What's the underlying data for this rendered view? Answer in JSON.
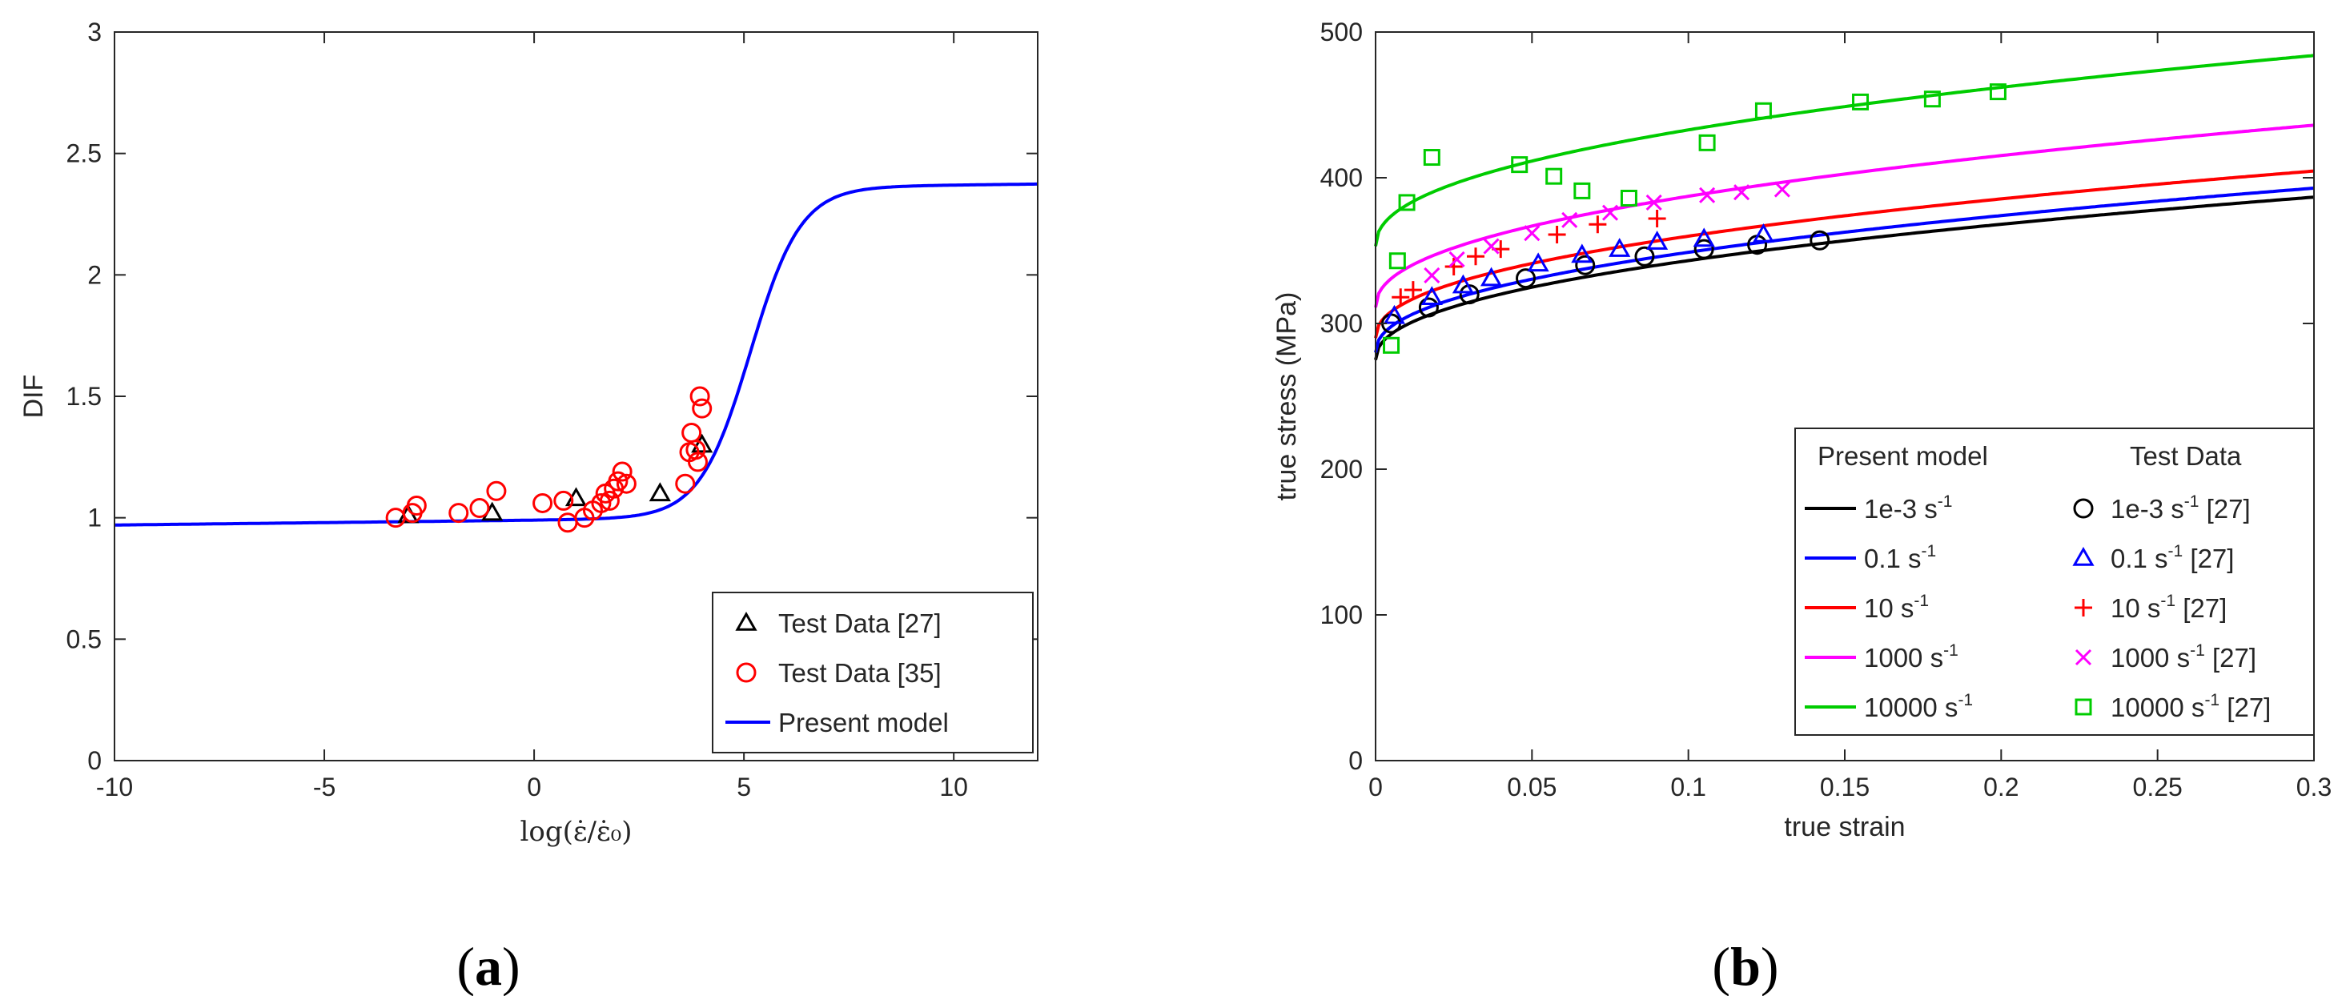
{
  "chart_data": [
    {
      "panel": "a",
      "type": "line",
      "caption": "a",
      "xlabel": "log(ε̇/ε̇₀)",
      "ylabel": "DIF",
      "xlim": [
        -10,
        12
      ],
      "ylim": [
        0,
        3
      ],
      "xticks": [
        -10,
        -5,
        0,
        5,
        10
      ],
      "yticks": [
        0,
        0.5,
        1,
        1.5,
        2,
        2.5,
        3
      ],
      "ytick_labels": [
        "0",
        "0.5",
        "1",
        "1.5",
        "2",
        "2.5",
        "3"
      ],
      "legend_position": "bottom-right",
      "model": {
        "name": "Present model",
        "color": "#0000ff",
        "base": 0.97,
        "plateau": 2.33,
        "center": 5.15,
        "width": 0.6,
        "low_slope": 0.004
      },
      "series": [
        {
          "name": "Test Data [27]",
          "marker": "triangle",
          "color": "#000000",
          "points": [
            [
              -3.0,
              1.01
            ],
            [
              -1.0,
              1.02
            ],
            [
              1.0,
              1.08
            ],
            [
              3.0,
              1.1
            ],
            [
              4.0,
              1.3
            ]
          ]
        },
        {
          "name": "Test Data [35]",
          "marker": "circle",
          "color": "#ff0000",
          "points": [
            [
              -3.3,
              1.0
            ],
            [
              -2.9,
              1.02
            ],
            [
              -2.8,
              1.05
            ],
            [
              -1.8,
              1.02
            ],
            [
              -1.3,
              1.04
            ],
            [
              -0.9,
              1.11
            ],
            [
              0.2,
              1.06
            ],
            [
              0.7,
              1.07
            ],
            [
              0.8,
              0.98
            ],
            [
              1.2,
              1.0
            ],
            [
              1.4,
              1.03
            ],
            [
              1.6,
              1.06
            ],
            [
              1.7,
              1.1
            ],
            [
              1.8,
              1.07
            ],
            [
              1.9,
              1.12
            ],
            [
              2.0,
              1.15
            ],
            [
              2.1,
              1.19
            ],
            [
              2.2,
              1.14
            ],
            [
              3.6,
              1.14
            ],
            [
              3.7,
              1.27
            ],
            [
              3.75,
              1.35
            ],
            [
              3.85,
              1.28
            ],
            [
              3.9,
              1.23
            ],
            [
              3.95,
              1.5
            ],
            [
              4.0,
              1.45
            ]
          ]
        }
      ]
    },
    {
      "panel": "b",
      "type": "line",
      "caption": "b",
      "xlabel": "true strain",
      "ylabel": "true stress (MPa)",
      "xlim": [
        0,
        0.3
      ],
      "ylim": [
        0,
        500
      ],
      "xticks": [
        0,
        0.05,
        0.1,
        0.15,
        0.2,
        0.25,
        0.3
      ],
      "xtick_labels": [
        "0",
        "0.05",
        "0.1",
        "0.15",
        "0.2",
        "0.25",
        "0.3"
      ],
      "yticks": [
        0,
        100,
        200,
        300,
        400,
        500
      ],
      "legend_position": "bottom-right",
      "legend_headers": [
        "Present model",
        "Test Data"
      ],
      "legend_unit": "s",
      "legend_unit_exp": "-1",
      "legend_ref": "[27]",
      "series": [
        {
          "rate": "1e-3",
          "color": "#000000",
          "marker": "circle",
          "model": {
            "A": 275,
            "B": 192,
            "n": 0.45
          },
          "points": [
            [
              0.005,
              300
            ],
            [
              0.017,
              311
            ],
            [
              0.03,
              320
            ],
            [
              0.048,
              331
            ],
            [
              0.067,
              340
            ],
            [
              0.086,
              346
            ],
            [
              0.105,
              351
            ],
            [
              0.122,
              354
            ],
            [
              0.142,
              357
            ]
          ]
        },
        {
          "rate": "0.1",
          "color": "#0000ff",
          "marker": "triangle",
          "model": {
            "A": 280,
            "B": 194,
            "n": 0.45
          },
          "points": [
            [
              0.006,
              305
            ],
            [
              0.018,
              318
            ],
            [
              0.028,
              326
            ],
            [
              0.037,
              331
            ],
            [
              0.052,
              341
            ],
            [
              0.066,
              347
            ],
            [
              0.078,
              351
            ],
            [
              0.09,
              356
            ],
            [
              0.105,
              358
            ],
            [
              0.124,
              361
            ]
          ]
        },
        {
          "rate": "10",
          "color": "#ff0000",
          "marker": "plus",
          "model": {
            "A": 290,
            "B": 197,
            "n": 0.45
          },
          "points": [
            [
              0.008,
              318
            ],
            [
              0.012,
              323
            ],
            [
              0.025,
              339
            ],
            [
              0.032,
              346
            ],
            [
              0.04,
              351
            ],
            [
              0.058,
              361
            ],
            [
              0.071,
              368
            ],
            [
              0.09,
              372
            ]
          ]
        },
        {
          "rate": "1000",
          "color": "#ff00ff",
          "marker": "x",
          "model": {
            "A": 311,
            "B": 215,
            "n": 0.45
          },
          "points": [
            [
              0.018,
              333
            ],
            [
              0.026,
              344
            ],
            [
              0.037,
              353
            ],
            [
              0.05,
              362
            ],
            [
              0.062,
              371
            ],
            [
              0.075,
              376
            ],
            [
              0.089,
              383
            ],
            [
              0.106,
              388
            ],
            [
              0.117,
              390
            ],
            [
              0.13,
              392
            ]
          ]
        },
        {
          "rate": "10000",
          "color": "#00cc00",
          "marker": "square",
          "model": {
            "A": 353,
            "B": 225,
            "n": 0.45
          },
          "points": [
            [
              0.005,
              285
            ],
            [
              0.007,
              343
            ],
            [
              0.01,
              383
            ],
            [
              0.018,
              414
            ],
            [
              0.046,
              409
            ],
            [
              0.057,
              401
            ],
            [
              0.066,
              391
            ],
            [
              0.081,
              386
            ],
            [
              0.106,
              424
            ],
            [
              0.124,
              446
            ],
            [
              0.155,
              452
            ],
            [
              0.178,
              454
            ],
            [
              0.199,
              459
            ]
          ]
        }
      ]
    }
  ]
}
